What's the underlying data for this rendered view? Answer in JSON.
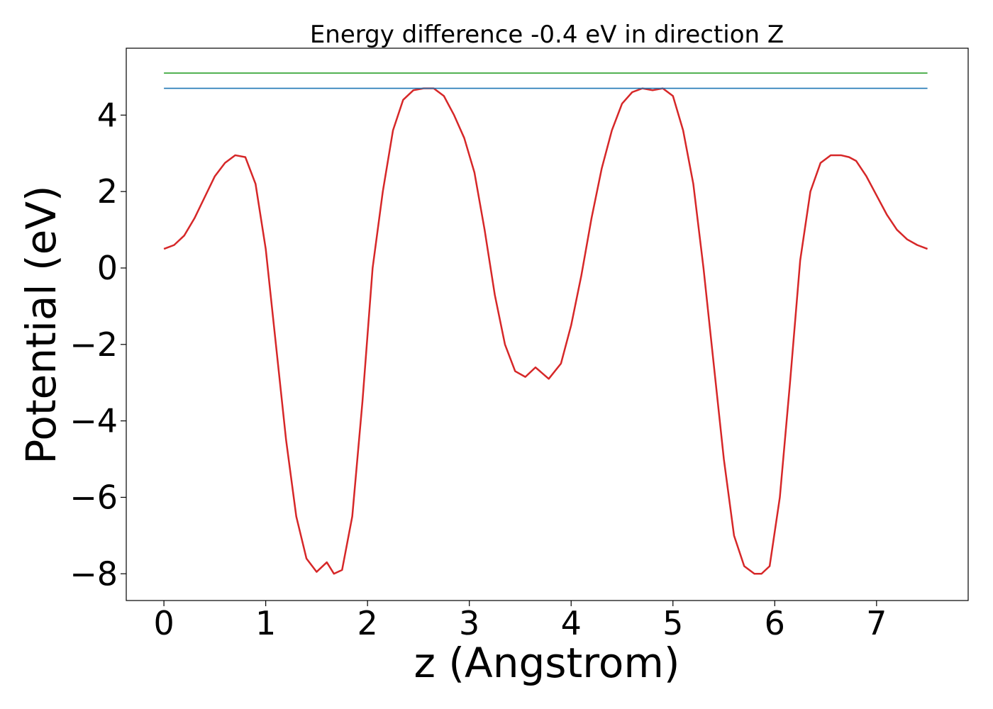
{
  "chart_data": {
    "type": "line",
    "title": "Energy difference -0.4 eV in direction Z",
    "xlabel": "z (Angstrom)",
    "ylabel": "Potential (eV)",
    "xlim": [
      -0.37,
      7.9
    ],
    "ylim": [
      -8.7,
      5.75
    ],
    "xticks": [
      0,
      1,
      2,
      3,
      4,
      5,
      6,
      7
    ],
    "yticks": [
      -8,
      -6,
      -4,
      -2,
      0,
      2,
      4
    ],
    "grid": false,
    "series": [
      {
        "color": "#d62728",
        "x": [
          0.0,
          0.1,
          0.2,
          0.3,
          0.4,
          0.5,
          0.6,
          0.7,
          0.8,
          0.9,
          1.0,
          1.1,
          1.2,
          1.3,
          1.4,
          1.5,
          1.6,
          1.67,
          1.75,
          1.85,
          1.95,
          2.05,
          2.15,
          2.25,
          2.35,
          2.45,
          2.55,
          2.65,
          2.75,
          2.85,
          2.95,
          3.05,
          3.15,
          3.25,
          3.35,
          3.45,
          3.55,
          3.65,
          3.78,
          3.9,
          4.0,
          4.1,
          4.2,
          4.3,
          4.4,
          4.5,
          4.6,
          4.7,
          4.8,
          4.9,
          5.0,
          5.1,
          5.2,
          5.3,
          5.4,
          5.5,
          5.6,
          5.7,
          5.8,
          5.87,
          5.95,
          6.05,
          6.15,
          6.25,
          6.35,
          6.45,
          6.55,
          6.65,
          6.73,
          6.8,
          6.9,
          7.0,
          7.1,
          7.2,
          7.3,
          7.4,
          7.5
        ],
        "y": [
          0.5,
          0.6,
          0.85,
          1.3,
          1.85,
          2.4,
          2.75,
          2.95,
          2.9,
          2.2,
          0.5,
          -2.0,
          -4.5,
          -6.5,
          -7.6,
          -7.95,
          -7.7,
          -8.0,
          -7.9,
          -6.5,
          -3.5,
          0.0,
          2.0,
          3.6,
          4.4,
          4.65,
          4.7,
          4.7,
          4.5,
          4.0,
          3.4,
          2.5,
          1.0,
          -0.7,
          -2.0,
          -2.7,
          -2.85,
          -2.6,
          -2.9,
          -2.5,
          -1.5,
          -0.2,
          1.3,
          2.6,
          3.6,
          4.3,
          4.6,
          4.7,
          4.65,
          4.7,
          4.5,
          3.6,
          2.2,
          0.0,
          -2.5,
          -5.0,
          -7.0,
          -7.8,
          -8.0,
          -8.0,
          -7.8,
          -6.0,
          -3.0,
          0.2,
          2.0,
          2.75,
          2.95,
          2.95,
          2.9,
          2.8,
          2.4,
          1.9,
          1.4,
          1.0,
          0.75,
          0.6,
          0.5
        ]
      },
      {
        "color": "#1f77b4",
        "x": [
          0.0,
          7.5
        ],
        "y": [
          4.7,
          4.7
        ]
      },
      {
        "color": "#2ca02c",
        "x": [
          0.0,
          7.5
        ],
        "y": [
          5.1,
          5.1
        ]
      }
    ]
  }
}
